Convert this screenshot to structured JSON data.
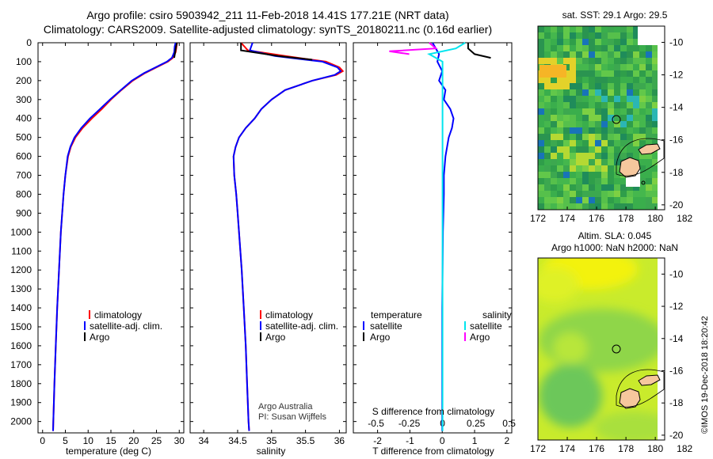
{
  "header": {
    "title_line1": "Argo profile: csiro 5903942_211 11-Feb-2018 14.41S 177.21E (NRT data)",
    "title_line2": "Climatology: CARS2009. Satellite-adjusted climatology: synTS_20180211.nc (0.16d earlier)"
  },
  "credit": {
    "line1": "Argo Australia",
    "line2": "PI: Susan Wijffels",
    "imos": "©IMOS 19-Dec-2018 18:20:42"
  },
  "colors": {
    "climatology": "#ff0000",
    "satellite": "#0000ff",
    "argo": "#000000",
    "sat_salinity": "#00e5ee",
    "argo_salinity": "#ff00ff"
  },
  "depth_axis": {
    "ticks": [
      "0",
      "100",
      "200",
      "300",
      "400",
      "500",
      "600",
      "700",
      "800",
      "900",
      "1000",
      "1100",
      "1200",
      "1300",
      "1400",
      "1500",
      "1600",
      "1700",
      "1800",
      "1900",
      "2000"
    ]
  },
  "chart_data": [
    {
      "type": "line",
      "name": "temperature",
      "xlabel": "temperature (deg C)",
      "xlim": [
        -1,
        31
      ],
      "ylim": [
        2060,
        0
      ],
      "x_ticks": [
        "0",
        "5",
        "10",
        "15",
        "20",
        "25",
        "30"
      ],
      "legend": [
        "climatology",
        "satellite-adj. clim.",
        "Argo"
      ],
      "series": [
        {
          "name": "climatology",
          "depth": [
            0,
            20,
            50,
            80,
            100,
            130,
            160,
            200,
            250,
            300,
            350,
            400,
            450,
            500,
            550,
            600,
            700,
            800,
            900,
            1000,
            1200,
            1400,
            1600,
            1800,
            2000,
            2050
          ],
          "values": [
            29.5,
            29.4,
            29.2,
            28.6,
            27.5,
            25.0,
            22.5,
            19.8,
            17.3,
            15.0,
            13.0,
            10.8,
            8.8,
            7.2,
            6.2,
            5.6,
            5.0,
            4.6,
            4.3,
            4.0,
            3.6,
            3.2,
            2.9,
            2.6,
            2.35,
            2.3
          ]
        },
        {
          "name": "satellite-adj. clim.",
          "depth": [
            0,
            20,
            50,
            80,
            100,
            130,
            160,
            200,
            250,
            300,
            350,
            400,
            450,
            500,
            550,
            600,
            700,
            800,
            900,
            1000,
            1200,
            1400,
            1600,
            1800,
            2000,
            2050
          ],
          "values": [
            29.2,
            29.0,
            28.9,
            28.4,
            27.3,
            24.8,
            22.3,
            19.6,
            17.2,
            14.8,
            12.6,
            10.4,
            8.5,
            7.0,
            6.1,
            5.5,
            5.0,
            4.6,
            4.3,
            4.0,
            3.6,
            3.2,
            2.9,
            2.6,
            2.35,
            2.3
          ]
        },
        {
          "name": "Argo",
          "depth": [
            0,
            20,
            50,
            80
          ],
          "values": [
            29.5,
            29.3,
            29.1,
            28.9
          ]
        }
      ]
    },
    {
      "type": "line",
      "name": "salinity",
      "xlabel": "salinity",
      "xlim": [
        33.8,
        36.1
      ],
      "ylim": [
        2060,
        0
      ],
      "x_ticks": [
        "34",
        "34.5",
        "35",
        "35.5",
        "36"
      ],
      "legend": [
        "climatology",
        "satellite-adj. clim.",
        "Argo"
      ],
      "series": [
        {
          "name": "climatology",
          "depth": [
            0,
            40,
            70,
            100,
            130,
            150,
            170,
            200,
            250,
            300,
            350,
            400,
            450,
            500,
            550,
            600,
            700,
            800,
            900,
            1000,
            1200,
            1400,
            1600,
            1800,
            2000,
            2050
          ],
          "values": [
            34.55,
            34.65,
            35.2,
            35.8,
            36.0,
            36.05,
            35.95,
            35.6,
            35.2,
            35.0,
            34.85,
            34.75,
            34.62,
            34.52,
            34.47,
            34.44,
            34.45,
            34.48,
            34.5,
            34.52,
            34.56,
            34.59,
            34.62,
            34.64,
            34.66,
            34.67
          ]
        },
        {
          "name": "satellite-adj. clim.",
          "depth": [
            0,
            40,
            70,
            100,
            130,
            150,
            170,
            200,
            250,
            300,
            350,
            400,
            450,
            500,
            550,
            600,
            700,
            800,
            900,
            1000,
            1200,
            1400,
            1600,
            1800,
            2000,
            2050
          ],
          "values": [
            34.72,
            34.68,
            35.05,
            35.75,
            35.97,
            36.02,
            35.93,
            35.6,
            35.2,
            35.0,
            34.85,
            34.75,
            34.62,
            34.52,
            34.47,
            34.44,
            34.45,
            34.48,
            34.5,
            34.52,
            34.56,
            34.59,
            34.62,
            34.64,
            34.66,
            34.67
          ]
        },
        {
          "name": "Argo",
          "depth": [
            0,
            40,
            70,
            90
          ],
          "values": [
            34.55,
            34.55,
            35.1,
            35.6
          ]
        }
      ]
    },
    {
      "type": "line",
      "name": "difference",
      "xlabel": "T difference from climatology",
      "xlabel2": "S difference from climatology",
      "xlim": [
        -2.75,
        2.15
      ],
      "ylim": [
        2060,
        0
      ],
      "x_ticks": [
        "-2",
        "-1",
        "0",
        "1",
        "2"
      ],
      "x2_ticks": [
        "-0.5",
        "-0.25",
        "0",
        "0.25",
        "0.5"
      ],
      "legend_title_t": "temperature",
      "legend_title_s": "salinity",
      "legend_t": [
        "satellite",
        "Argo"
      ],
      "legend_s": [
        "satellite",
        "Argo"
      ],
      "series": [
        {
          "name": "T satellite",
          "depth": [
            0,
            30,
            60,
            100,
            150,
            200,
            250,
            300,
            350,
            400,
            450,
            500,
            600,
            700,
            800,
            1000,
            1400,
            1800,
            2050
          ],
          "values": [
            -0.3,
            -0.2,
            -0.1,
            -0.15,
            0.0,
            -0.1,
            0.1,
            0.05,
            0.25,
            0.35,
            0.3,
            0.2,
            0.1,
            0.05,
            0.05,
            0.02,
            0.0,
            0.0,
            0.0
          ]
        },
        {
          "name": "T Argo",
          "depth": [
            0,
            30,
            60,
            80
          ],
          "values": [
            0.8,
            0.8,
            1.0,
            1.5
          ]
        },
        {
          "name": "S satellite",
          "depth": [
            0,
            30,
            60,
            100,
            150,
            200,
            300,
            400,
            500,
            600,
            800,
            1000,
            1400,
            1800,
            2050
          ],
          "values": [
            0.17,
            0.1,
            -0.1,
            0.0,
            0.0,
            0.0,
            0.0,
            0.0,
            0.0,
            0.0,
            0.0,
            0.0,
            0.0,
            0.0,
            0.0
          ]
        },
        {
          "name": "S Argo",
          "depth": [
            0,
            30,
            45,
            60
          ],
          "values": [
            -0.1,
            -0.05,
            -0.4,
            -0.25
          ]
        }
      ]
    },
    {
      "type": "heatmap",
      "name": "sst_map",
      "title": "sat. SST: 29.1 Argo: 29.5",
      "x_ticks": [
        "172",
        "174",
        "176",
        "178",
        "180",
        "182"
      ],
      "y_ticks": [
        "-10",
        "-12",
        "-14",
        "-16",
        "-18",
        "-20"
      ],
      "argo_lon": 177.21,
      "argo_lat": -14.41
    },
    {
      "type": "heatmap",
      "name": "sla_map",
      "title": "Altim. SLA: 0.045",
      "subtitle": "Argo h1000: NaN h2000: NaN",
      "x_ticks": [
        "172",
        "174",
        "176",
        "178",
        "180",
        "182"
      ],
      "y_ticks": [
        "-10",
        "-12",
        "-14",
        "-16",
        "-18",
        "-20"
      ],
      "argo_lon": 177.21,
      "argo_lat": -14.41
    }
  ]
}
